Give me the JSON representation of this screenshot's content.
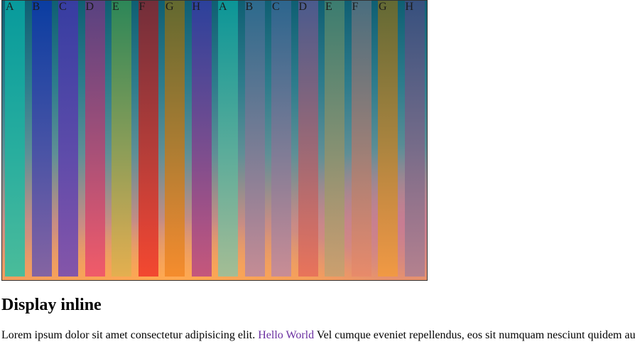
{
  "gallery": {
    "bars": [
      {
        "label": "A",
        "top": "#079f9f",
        "bottom": "#3bbf9f"
      },
      {
        "label": "B",
        "top": "#0a3aa5",
        "bottom": "#7b5fa8"
      },
      {
        "label": "C",
        "top": "#3a3aa5",
        "bottom": "#7a4fb0"
      },
      {
        "label": "D",
        "top": "#5e3f82",
        "bottom": "#f0556a"
      },
      {
        "label": "E",
        "top": "#2f8a56",
        "bottom": "#e2b04f"
      },
      {
        "label": "F",
        "top": "#7b2a35",
        "bottom": "#f2402d"
      },
      {
        "label": "G",
        "top": "#6a6a2a",
        "bottom": "#f48a2a"
      },
      {
        "label": "H",
        "top": "#2e3e9f",
        "bottom": "#c0507f"
      },
      {
        "label": "A",
        "top": "#0b9a9a",
        "bottom": "#9cbf9a"
      },
      {
        "label": "B",
        "top": "#2f6b8f",
        "bottom": "#c08a9a"
      },
      {
        "label": "C",
        "top": "#2f6690",
        "bottom": "#c58b9a"
      },
      {
        "label": "D",
        "top": "#4f5a8f",
        "bottom": "#e8705a"
      },
      {
        "label": "E",
        "top": "#3f7f6f",
        "bottom": "#c9a06f"
      },
      {
        "label": "F",
        "top": "#4f6f7f",
        "bottom": "#e88a6a"
      },
      {
        "label": "G",
        "top": "#6a6a2f",
        "bottom": "#f29a40"
      },
      {
        "label": "H",
        "top": "#3a4f7f",
        "bottom": "#b08090"
      }
    ]
  },
  "heading": "Display inline",
  "paragraph": {
    "before": "Lorem ipsum dolor sit amet consectetur adipisicing elit. ",
    "link": "Hello World",
    "after": " Vel cumque eveniet repellendus, eos sit numquam nesciunt quidem au"
  }
}
